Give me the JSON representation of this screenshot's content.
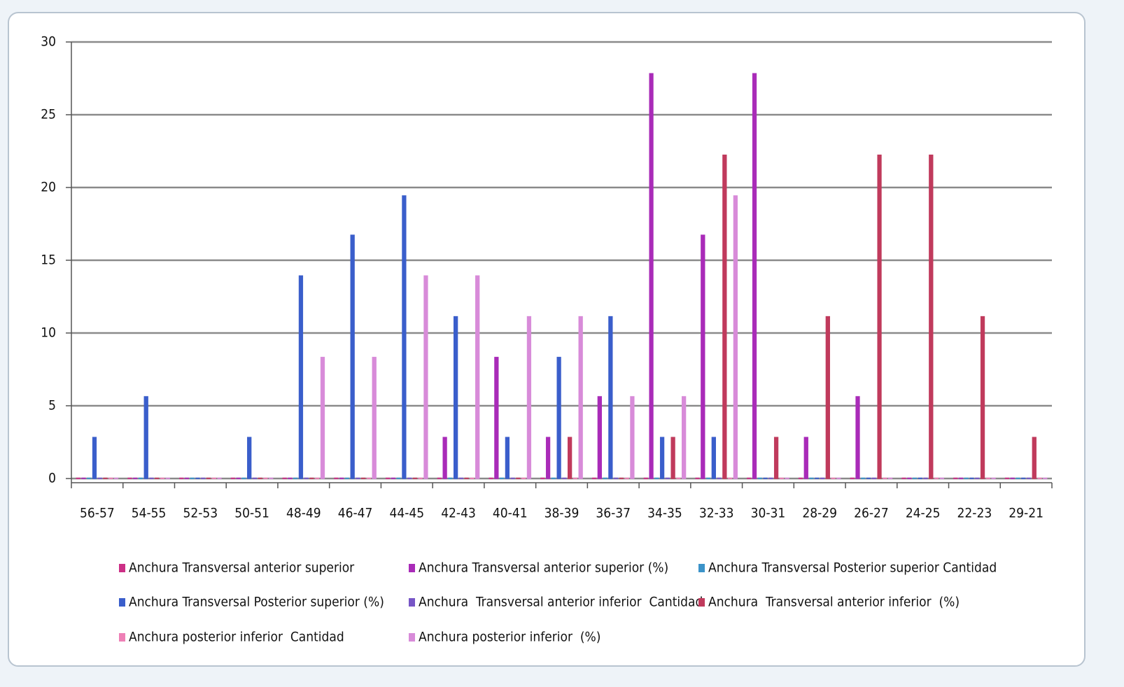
{
  "chart_data": {
    "type": "bar",
    "categories": [
      "56-57",
      "54-55",
      "52-53",
      "50-51",
      "48-49",
      "46-47",
      "44-45",
      "42-43",
      "40-41",
      "38-39",
      "36-37",
      "34-35",
      "32-33",
      "30-31",
      "28-29",
      "26-27",
      "24-25",
      "22-23",
      "29-21"
    ],
    "series": [
      {
        "name": "Anchura Transversal anterior superior",
        "color": "#cc2f86",
        "values": [
          0,
          0,
          0,
          0,
          0,
          0,
          0,
          0,
          0,
          0,
          0,
          0,
          0,
          0,
          0,
          0,
          0,
          0,
          0
        ]
      },
      {
        "name": "Anchura Transversal anterior superior (%)",
        "color": "#a92bb8",
        "values": [
          0,
          0,
          0,
          0,
          0,
          0,
          0,
          2.8,
          8.3,
          2.8,
          5.6,
          27.8,
          16.7,
          27.8,
          2.8,
          5.6,
          0,
          0,
          0
        ]
      },
      {
        "name": "Anchura Transversal Posterior superior Cantidad",
        "color": "#3b93c9",
        "values": [
          0,
          0,
          0,
          0,
          0,
          0,
          0,
          0,
          0,
          0,
          0,
          0,
          0,
          0,
          0,
          0,
          0,
          0,
          0
        ]
      },
      {
        "name": "Anchura Transversal Posterior superior (%)",
        "color": "#3a5ecb",
        "values": [
          2.8,
          5.6,
          0,
          2.8,
          13.9,
          16.7,
          19.4,
          11.1,
          2.8,
          8.3,
          11.1,
          2.8,
          2.8,
          0,
          0,
          0,
          0,
          0,
          0
        ]
      },
      {
        "name": "Anchura  Transversal anterior inferior  Cantidad",
        "color": "#7756c6",
        "values": [
          0,
          0,
          0,
          0,
          0,
          0,
          0,
          0,
          0,
          0,
          0,
          0,
          0,
          0,
          0,
          0,
          0,
          0,
          0
        ]
      },
      {
        "name": "Anchura  Transversal anterior inferior  (%)",
        "color": "#c03a5c",
        "values": [
          0,
          0,
          0,
          0,
          0,
          0,
          0,
          0,
          0,
          2.8,
          0,
          2.8,
          22.2,
          2.8,
          11.1,
          22.2,
          22.2,
          11.1,
          2.8
        ]
      },
      {
        "name": "Anchura posterior inferior  Cantidad",
        "color": "#ee80b6",
        "values": [
          0,
          0,
          0,
          0,
          0,
          0,
          0,
          0,
          0,
          0,
          0,
          0,
          0,
          0,
          0,
          0,
          0,
          0,
          0
        ]
      },
      {
        "name": "Anchura posterior inferior  (%)",
        "color": "#d88bd9",
        "values": [
          0,
          0,
          0,
          0,
          8.3,
          8.3,
          13.9,
          13.9,
          11.1,
          11.1,
          5.6,
          5.6,
          19.4,
          0,
          0,
          0,
          0,
          0,
          0
        ]
      }
    ],
    "ylim": [
      0,
      30
    ],
    "yticks": [
      0,
      5,
      10,
      15,
      20,
      25,
      30
    ],
    "grid": true
  }
}
